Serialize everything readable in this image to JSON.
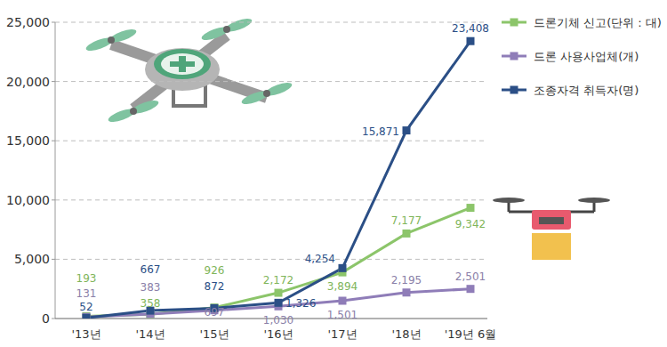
{
  "chart_data": {
    "type": "line",
    "categories": [
      "'13년",
      "'14년",
      "'15년",
      "'16년",
      "'17년",
      "'18년",
      "'19년 6월"
    ],
    "series": [
      {
        "name": "드론기체 신고(단위 : 대)",
        "color": "#8cc56a",
        "marker": "square",
        "line_style": "solid",
        "values": [
          193,
          358,
          926,
          2172,
          3894,
          7177,
          9342
        ],
        "value_labels": [
          "193",
          "358",
          "926",
          "2,172",
          "3,894",
          "7,177",
          "9,342"
        ]
      },
      {
        "name": "드론 사용사업체(개)",
        "color": "#8f7db8",
        "marker": "square",
        "line_style": "solid",
        "values": [
          131,
          383,
          697,
          1030,
          1501,
          2195,
          2501
        ],
        "value_labels": [
          "131",
          "383",
          "697",
          "1,030",
          "1,501",
          "2,195",
          "2,501"
        ]
      },
      {
        "name": "조종자격 취득자(명)",
        "color": "#2b4f86",
        "marker": "square",
        "line_style": "solid",
        "values": [
          52,
          667,
          872,
          1326,
          4254,
          15871,
          23408
        ],
        "value_labels": [
          "52",
          "667",
          "872",
          "1,326",
          "4,254",
          "15,871",
          "23,408"
        ]
      }
    ],
    "ylim": [
      0,
      25000
    ],
    "yticks": [
      {
        "value": 0,
        "label": "0"
      },
      {
        "value": 5000,
        "label": "5,000"
      },
      {
        "value": 10000,
        "label": "10,000"
      },
      {
        "value": 15000,
        "label": "15,000"
      },
      {
        "value": 20000,
        "label": "20,000"
      },
      {
        "value": 25000,
        "label": "25,000"
      }
    ],
    "grid": true,
    "legend": "top-right",
    "data_labels": true
  }
}
